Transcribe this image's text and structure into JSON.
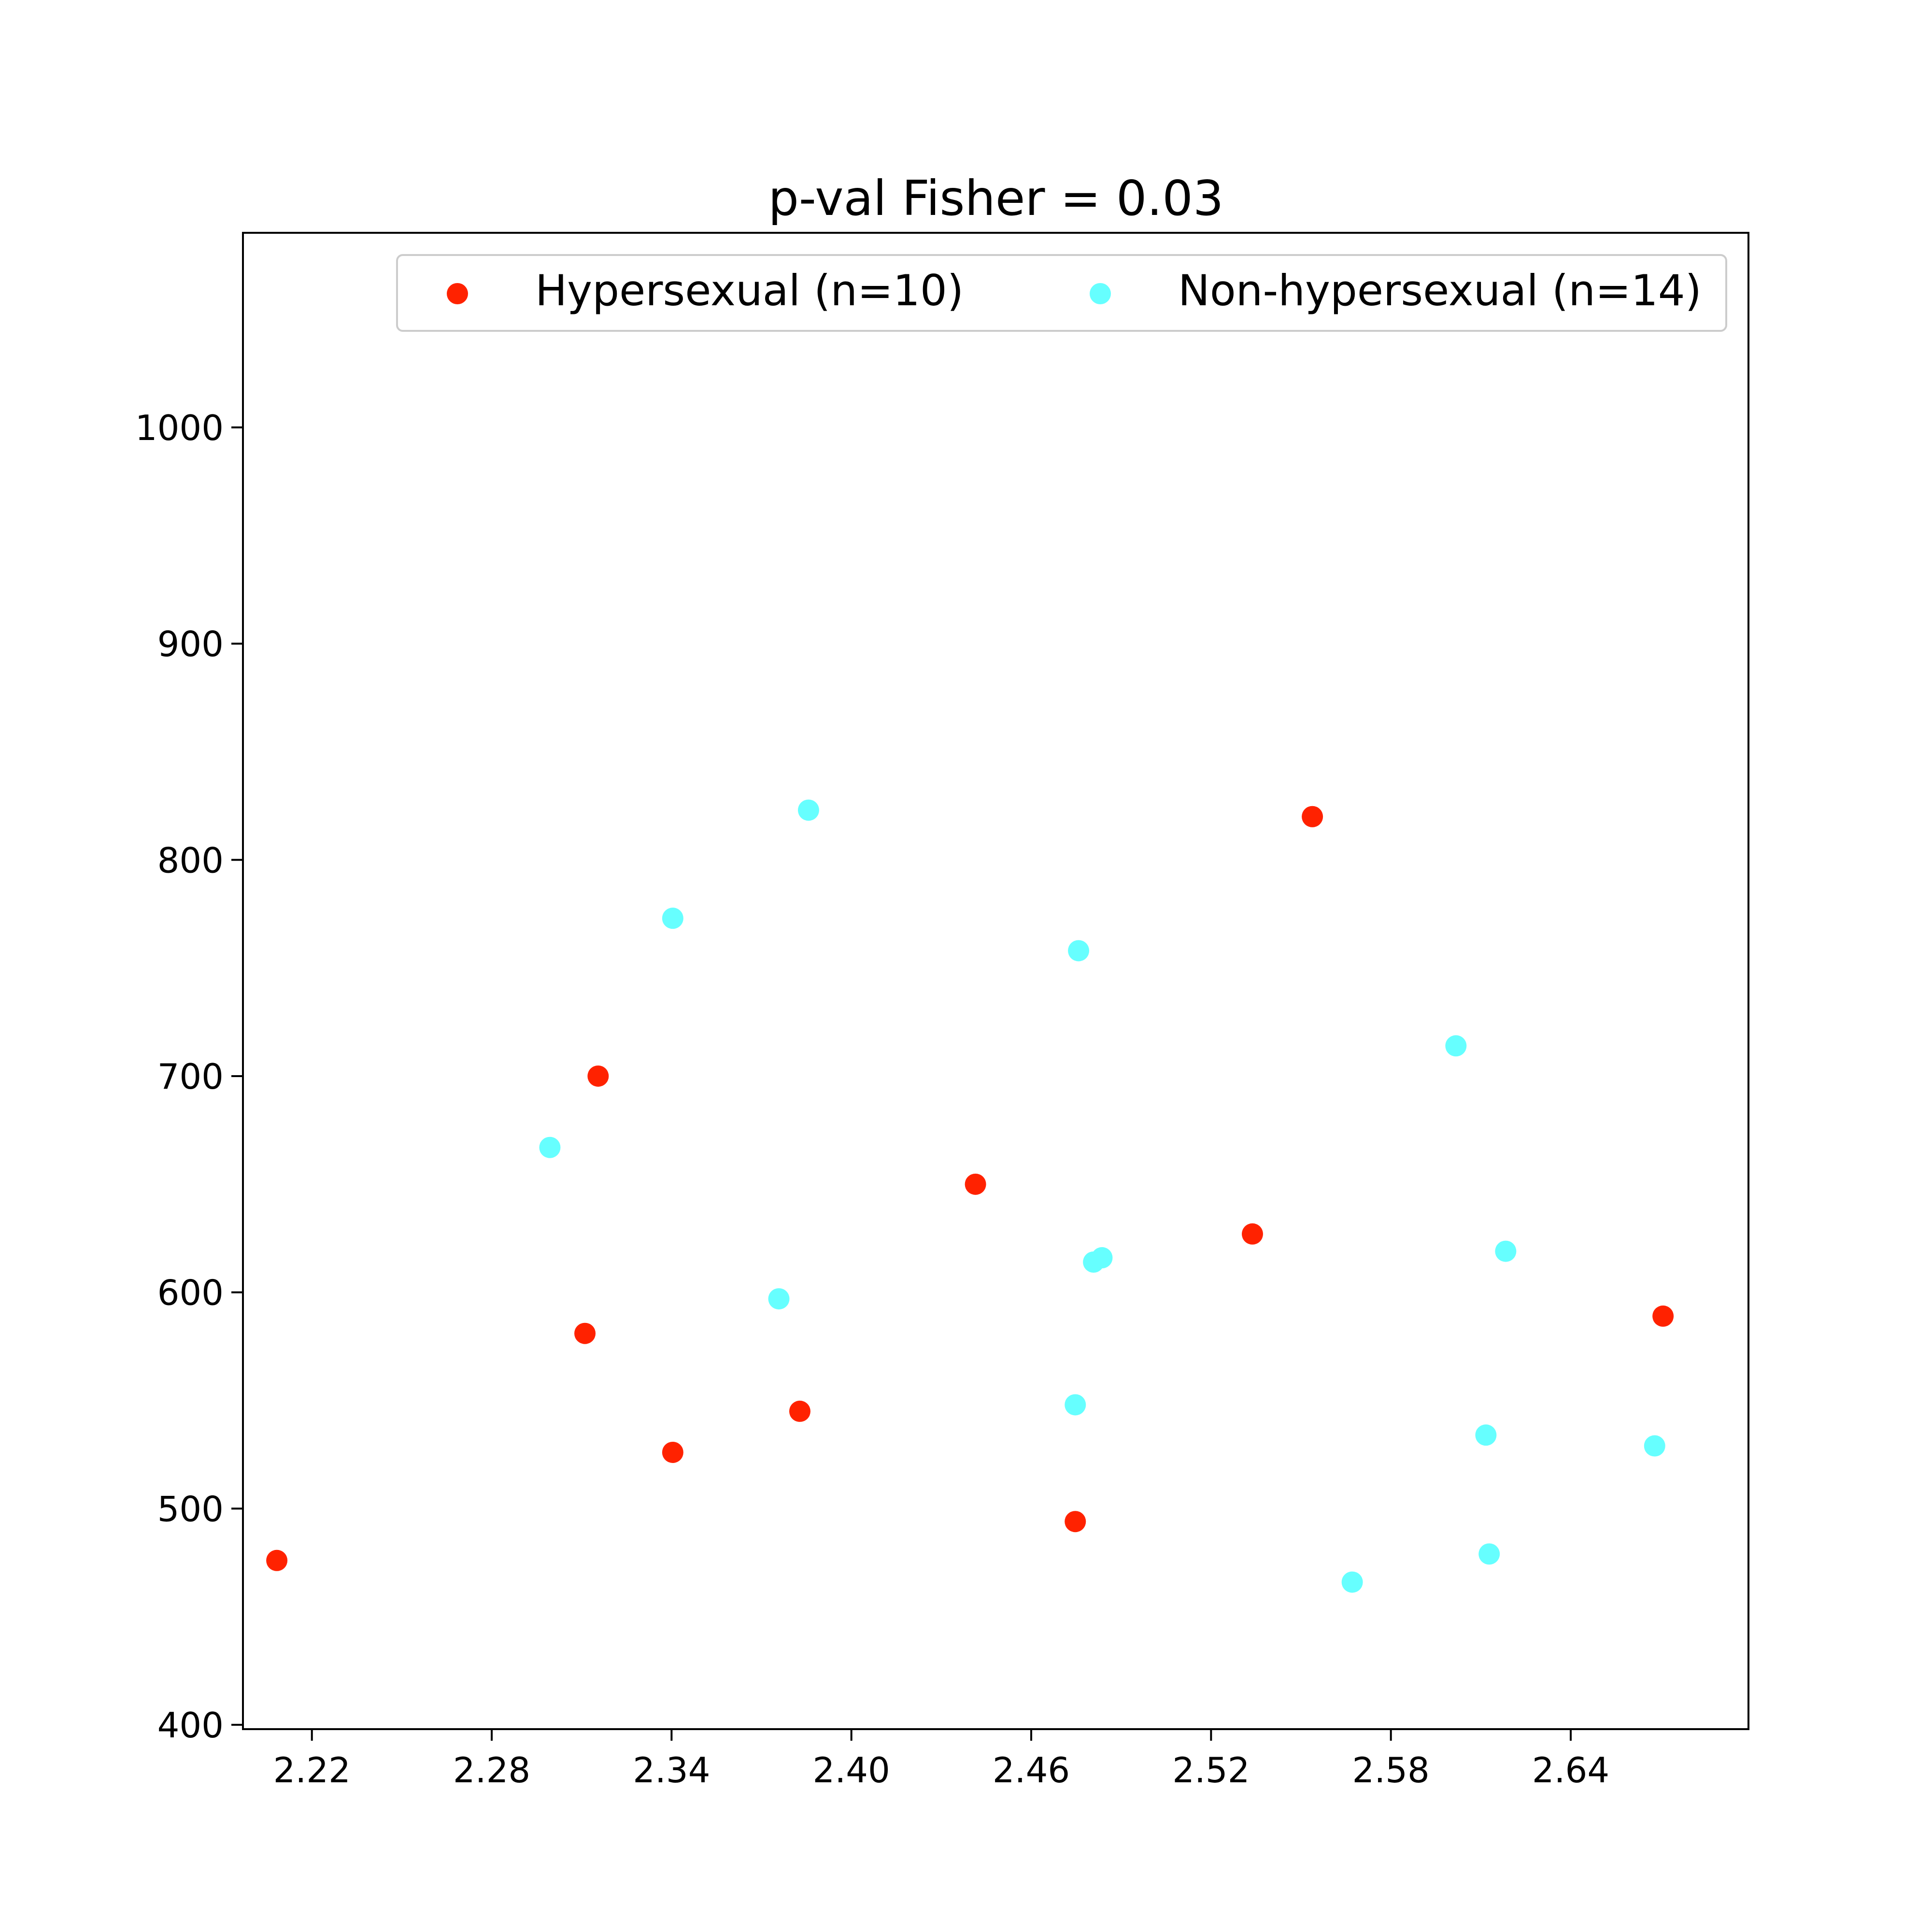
{
  "chart_data": {
    "type": "scatter",
    "title": "p-val Fisher = 0.03",
    "xlabel": "",
    "ylabel": "",
    "xlim": [
      2.197,
      2.6993
    ],
    "ylim": [
      398,
      1090
    ],
    "x_ticks": [
      "2.22",
      "2.28",
      "2.34",
      "2.40",
      "2.46",
      "2.52",
      "2.58",
      "2.64"
    ],
    "y_ticks": [
      "400",
      "500",
      "600",
      "700",
      "800",
      "900",
      "1000"
    ],
    "grid": false,
    "legend_position": "top-right",
    "series": [
      {
        "name": "Hypersexual (n=10)",
        "color": "#ff2200",
        "points": [
          {
            "x": 2.2083,
            "y": 476
          },
          {
            "x": 2.3155,
            "y": 700
          },
          {
            "x": 2.3111,
            "y": 581
          },
          {
            "x": 2.3404,
            "y": 526
          },
          {
            "x": 2.3828,
            "y": 545
          },
          {
            "x": 2.4414,
            "y": 650
          },
          {
            "x": 2.4747,
            "y": 494
          },
          {
            "x": 2.5338,
            "y": 627
          },
          {
            "x": 2.5538,
            "y": 820
          },
          {
            "x": 2.6708,
            "y": 589
          }
        ]
      },
      {
        "name": "Non-hypersexual (n=14)",
        "color": "#66ffff",
        "points": [
          {
            "x": 2.2994,
            "y": 667
          },
          {
            "x": 2.3404,
            "y": 773
          },
          {
            "x": 2.3758,
            "y": 597
          },
          {
            "x": 2.3857,
            "y": 823
          },
          {
            "x": 2.4747,
            "y": 548
          },
          {
            "x": 2.4758,
            "y": 758
          },
          {
            "x": 2.4808,
            "y": 614
          },
          {
            "x": 2.4836,
            "y": 616
          },
          {
            "x": 2.5671,
            "y": 466
          },
          {
            "x": 2.6017,
            "y": 714
          },
          {
            "x": 2.6117,
            "y": 534
          },
          {
            "x": 2.6128,
            "y": 479
          },
          {
            "x": 2.6183,
            "y": 619
          },
          {
            "x": 2.668,
            "y": 529
          }
        ]
      }
    ]
  }
}
